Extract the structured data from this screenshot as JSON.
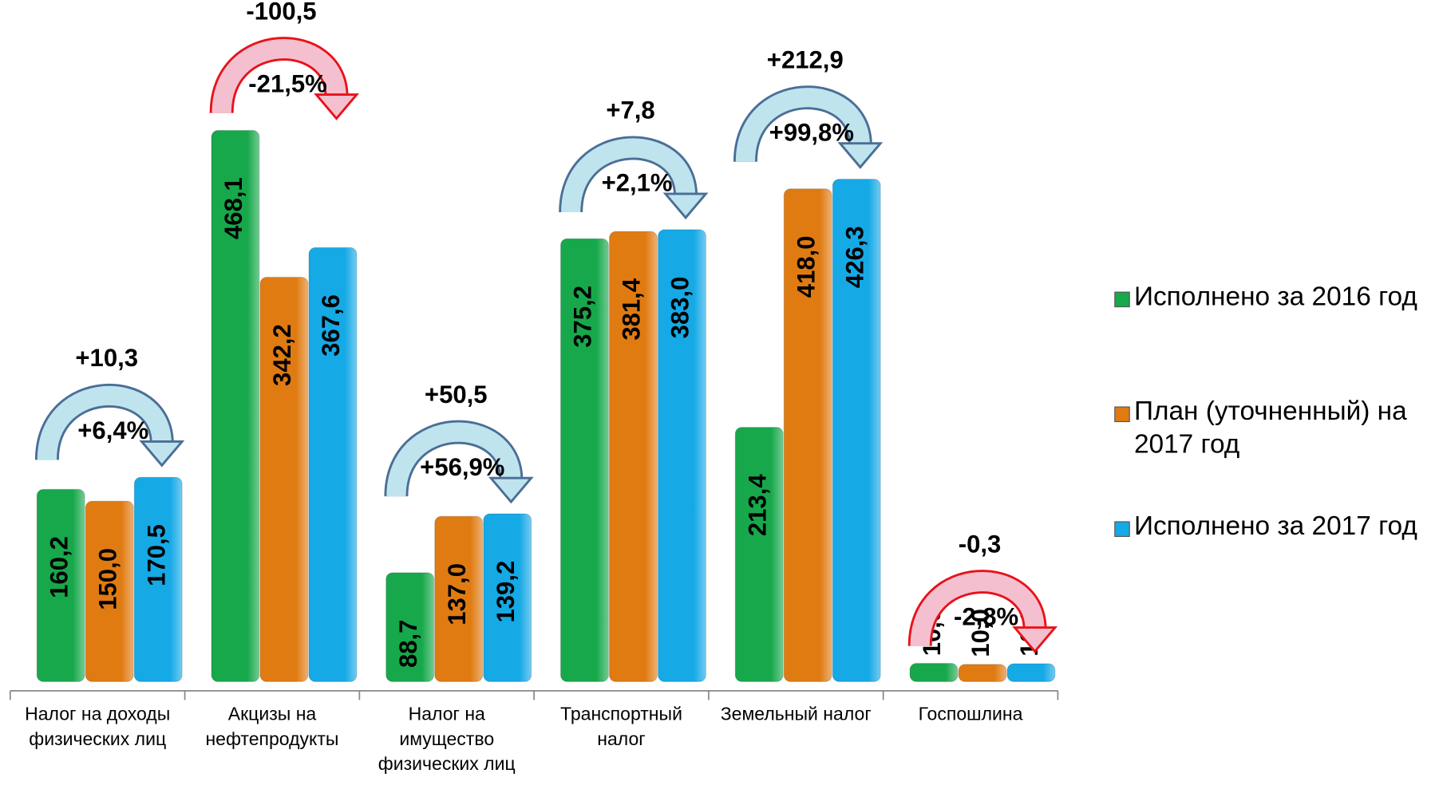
{
  "chart_data": {
    "type": "bar",
    "categories": [
      "Налог на доходы физических лиц",
      "Акцизы на нефтепродукты",
      "Налог на имущество физических лиц",
      "Транспортный налог",
      "Земельный налог",
      "Госпошлина"
    ],
    "series": [
      {
        "name": "Исполнено за 2016 год",
        "color": "#17a84b",
        "values": [
          160.2,
          468.1,
          88.7,
          375.2,
          213.4,
          10.9
        ],
        "value_labels": [
          "160,2",
          "468,1",
          "88,7",
          "375,2",
          "213,4",
          "10,9"
        ]
      },
      {
        "name": "План (уточненный) на 2017 год",
        "color": "#e07b12",
        "values": [
          150.0,
          342.2,
          137.0,
          381.4,
          418.0,
          10.0
        ],
        "value_labels": [
          "150,0",
          "342,2",
          "137,0",
          "381,4",
          "418,0",
          "10,0"
        ]
      },
      {
        "name": "Исполнено за 2017 год",
        "color": "#15a9e6",
        "values": [
          170.5,
          367.6,
          139.2,
          383.0,
          426.3,
          10.6
        ],
        "value_labels": [
          "170,5",
          "367,6",
          "139,2",
          "383,0",
          "426,3",
          "10,6"
        ]
      }
    ],
    "annotations": [
      {
        "change": 10.3,
        "change_label": "+10,3",
        "percent": 6.4,
        "percent_label": "+6,4%"
      },
      {
        "change": -100.5,
        "change_label": "-100,5",
        "percent": -21.5,
        "percent_label": "-21,5%"
      },
      {
        "change": 50.5,
        "change_label": "+50,5",
        "percent": 56.9,
        "percent_label": "+56,9%"
      },
      {
        "change": 7.8,
        "change_label": "+7,8",
        "percent": 2.1,
        "percent_label": "+2,1%"
      },
      {
        "change": 212.9,
        "change_label": "+212,9",
        "percent": 99.8,
        "percent_label": "+99,8%"
      },
      {
        "change": -0.3,
        "change_label": "-0,3",
        "percent": -2.8,
        "percent_label": "-2,8%"
      }
    ],
    "legend": "right"
  }
}
